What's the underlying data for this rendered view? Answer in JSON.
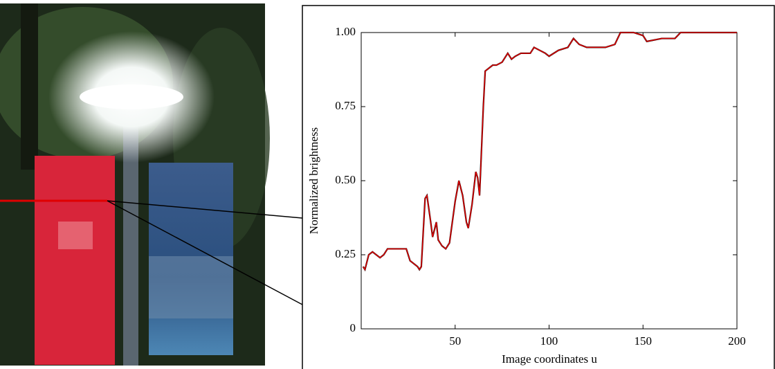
{
  "chart_data": {
    "type": "line",
    "xlabel": "Image coordinates u",
    "ylabel": "Normalized brightness",
    "x": [
      1,
      2,
      4,
      6,
      8,
      10,
      12,
      14,
      20,
      24,
      26,
      30,
      31,
      32,
      34,
      35,
      37,
      38,
      40,
      41,
      43,
      45,
      47,
      50,
      52,
      54,
      56,
      57,
      59,
      61,
      62,
      63,
      65,
      66,
      68,
      70,
      72,
      75,
      78,
      80,
      82,
      85,
      90,
      92,
      95,
      98,
      100,
      105,
      110,
      113,
      116,
      120,
      130,
      135,
      138,
      145,
      150,
      152,
      160,
      167,
      170,
      200
    ],
    "series": [
      {
        "color": "#000000",
        "values": [
          0.21,
          0.2,
          0.25,
          0.26,
          0.25,
          0.24,
          0.25,
          0.27,
          0.27,
          0.27,
          0.23,
          0.21,
          0.2,
          0.21,
          0.44,
          0.45,
          0.36,
          0.31,
          0.36,
          0.3,
          0.28,
          0.27,
          0.29,
          0.43,
          0.5,
          0.45,
          0.36,
          0.34,
          0.42,
          0.53,
          0.51,
          0.45,
          0.75,
          0.87,
          0.88,
          0.89,
          0.89,
          0.9,
          0.93,
          0.91,
          0.92,
          0.93,
          0.93,
          0.95,
          0.94,
          0.93,
          0.92,
          0.94,
          0.95,
          0.98,
          0.96,
          0.95,
          0.95,
          0.96,
          1.0,
          1.0,
          0.99,
          0.97,
          0.98,
          0.98,
          1.0,
          1.0
        ]
      },
      {
        "color": "#e00000",
        "values": [
          0.21,
          0.2,
          0.25,
          0.26,
          0.25,
          0.24,
          0.25,
          0.27,
          0.27,
          0.27,
          0.23,
          0.21,
          0.2,
          0.21,
          0.44,
          0.45,
          0.36,
          0.31,
          0.36,
          0.3,
          0.28,
          0.27,
          0.29,
          0.43,
          0.5,
          0.45,
          0.36,
          0.34,
          0.42,
          0.53,
          0.51,
          0.45,
          0.75,
          0.87,
          0.88,
          0.89,
          0.89,
          0.9,
          0.93,
          0.91,
          0.92,
          0.93,
          0.93,
          0.95,
          0.94,
          0.93,
          0.92,
          0.94,
          0.95,
          0.98,
          0.96,
          0.95,
          0.95,
          0.96,
          1.0,
          1.0,
          0.99,
          0.97,
          0.98,
          0.98,
          1.0,
          1.0
        ]
      }
    ],
    "xlim": [
      0,
      200
    ],
    "xticks": [
      50,
      100,
      150,
      200
    ],
    "ylim": [
      0,
      1
    ],
    "yticks": [
      0,
      {
        "value": 0.25,
        "label": "0.25"
      },
      {
        "value": 0.5,
        "label": "0.50"
      },
      0.75,
      {
        "value": 1,
        "label": "1.00"
      }
    ],
    "grid": false
  }
}
